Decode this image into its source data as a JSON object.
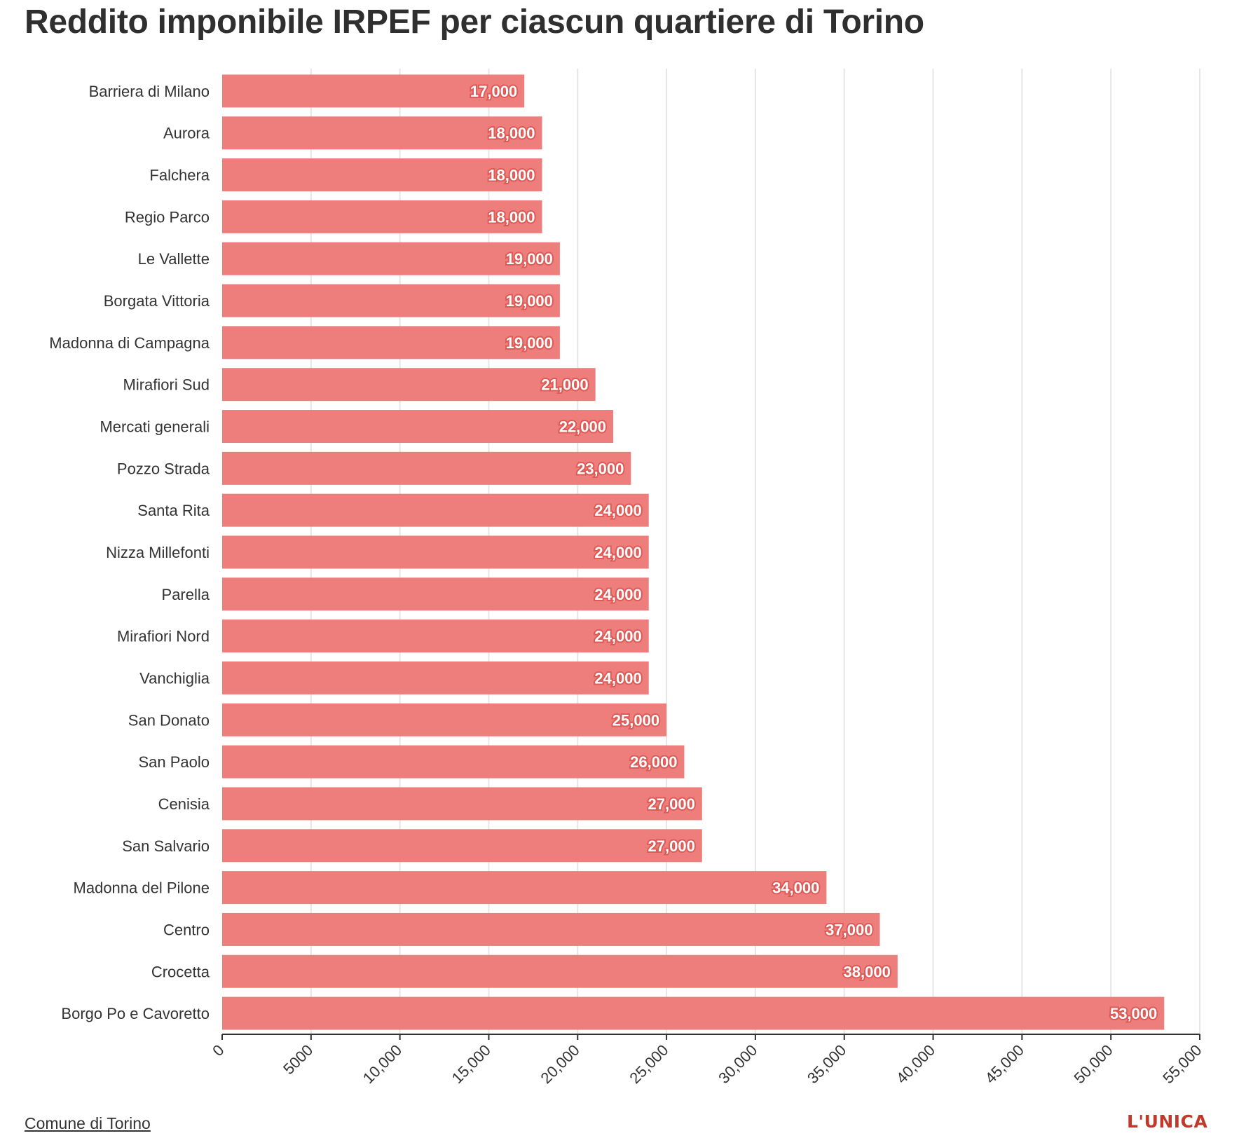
{
  "title": "Reddito imponibile IRPEF per ciascun quartiere di Torino",
  "source": "Comune di Torino",
  "logo": "L'UNICA",
  "colors": {
    "bar": "#ee7e7b",
    "label_stroke": "#de5a56",
    "grid": "#e6e6e6",
    "text": "#333333",
    "logo": "#c0392b"
  },
  "chart_data": {
    "type": "bar",
    "orientation": "horizontal",
    "title": "Reddito imponibile IRPEF per ciascun quartiere di Torino",
    "xlabel": "",
    "ylabel": "",
    "xlim": [
      0,
      55000
    ],
    "grid": true,
    "ticks": [
      "0",
      "5000",
      "10,000",
      "15,000",
      "20,000",
      "25,000",
      "30,000",
      "35,000",
      "40,000",
      "45,000",
      "50,000",
      "55,000"
    ],
    "tick_values": [
      0,
      5000,
      10000,
      15000,
      20000,
      25000,
      30000,
      35000,
      40000,
      45000,
      50000,
      55000
    ],
    "categories": [
      "Barriera di Milano",
      "Aurora",
      "Falchera",
      "Regio Parco",
      "Le Vallette",
      "Borgata Vittoria",
      "Madonna di Campagna",
      "Mirafiori Sud",
      "Mercati generali",
      "Pozzo Strada",
      "Santa Rita",
      "Nizza Millefonti",
      "Parella",
      "Mirafiori Nord",
      "Vanchiglia",
      "San Donato",
      "San Paolo",
      "Cenisia",
      "San Salvario",
      "Madonna del Pilone",
      "Centro",
      "Crocetta",
      "Borgo Po e Cavoretto"
    ],
    "values": [
      17000,
      18000,
      18000,
      18000,
      19000,
      19000,
      19000,
      21000,
      22000,
      23000,
      24000,
      24000,
      24000,
      24000,
      24000,
      25000,
      26000,
      27000,
      27000,
      34000,
      37000,
      38000,
      53000
    ],
    "value_labels": [
      "17,000",
      "18,000",
      "18,000",
      "18,000",
      "19,000",
      "19,000",
      "19,000",
      "21,000",
      "22,000",
      "23,000",
      "24,000",
      "24,000",
      "24,000",
      "24,000",
      "24,000",
      "25,000",
      "26,000",
      "27,000",
      "27,000",
      "34,000",
      "37,000",
      "38,000",
      "53,000"
    ]
  }
}
